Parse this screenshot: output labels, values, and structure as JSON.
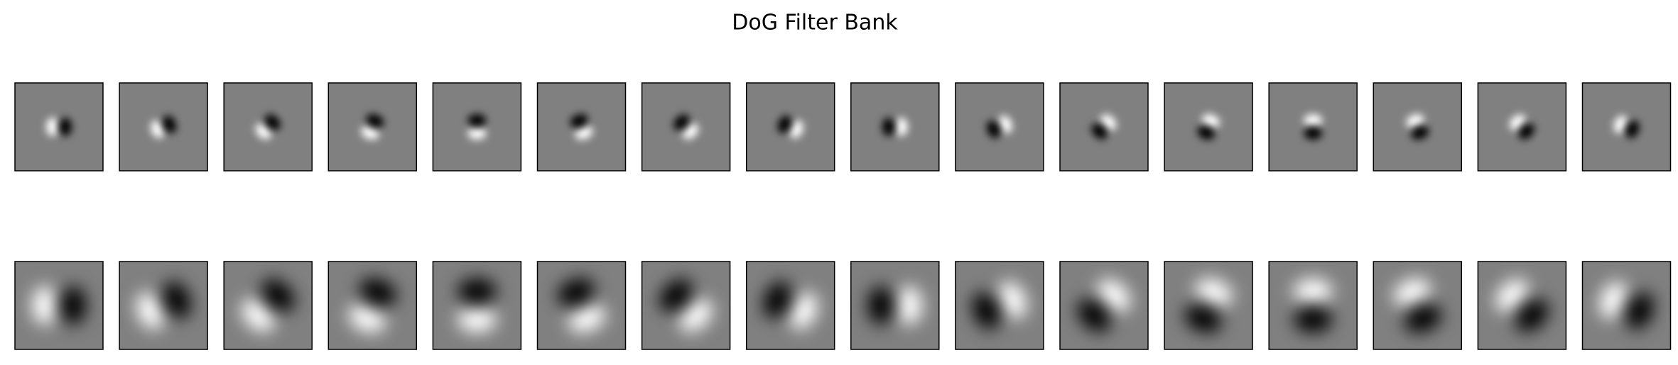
{
  "title": "DoG Filter Bank"
}
